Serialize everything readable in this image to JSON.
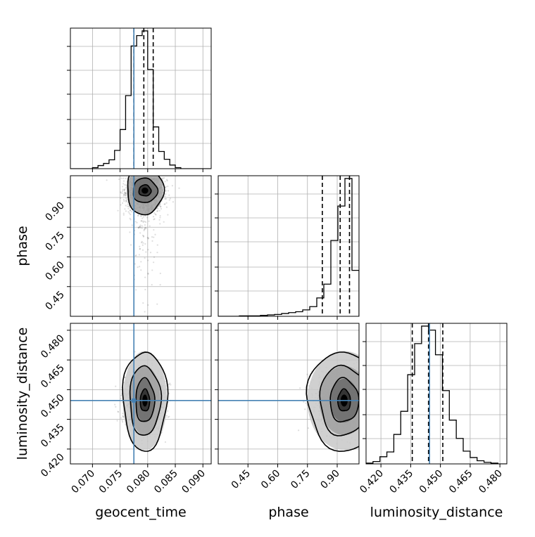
{
  "chart_data": {
    "type": "corner",
    "parameters": [
      "geocent_time",
      "phase",
      "luminosity_distance"
    ],
    "axis_labels": {
      "geocent_time": "geocent_time",
      "phase": "phase",
      "luminosity_distance": "luminosity_distance"
    },
    "ranges": {
      "geocent_time": [
        0.066,
        0.0915
      ],
      "phase": [
        0.3,
        1.01
      ],
      "luminosity_distance": [
        0.4125,
        0.4835
      ]
    },
    "ticks": {
      "geocent_time": [
        0.07,
        0.075,
        0.08,
        0.085,
        0.09
      ],
      "phase": [
        0.45,
        0.6,
        0.75,
        0.9
      ],
      "luminosity_distance": [
        0.42,
        0.435,
        0.45,
        0.465,
        0.48
      ]
    },
    "tick_labels": {
      "geocent_time": [
        "0.070",
        "0.075",
        "0.080",
        "0.085",
        "0.090"
      ],
      "phase": [
        "0.45",
        "0.60",
        "0.75",
        "0.90"
      ],
      "luminosity_distance": [
        "0.420",
        "0.435",
        "0.450",
        "0.465",
        "0.480"
      ]
    },
    "truths": {
      "geocent_time": 0.0775,
      "phase": null,
      "luminosity_distance": 0.4445
    },
    "truth_color": "#4682b4",
    "quantiles": {
      "geocent_time": [
        0.0775,
        0.0793,
        0.081
      ],
      "phase": [
        0.825,
        0.915,
        0.962
      ],
      "luminosity_distance": [
        0.4358,
        0.444,
        0.4512
      ]
    },
    "histograms": {
      "geocent_time": {
        "edges": [
          0.07,
          0.071,
          0.072,
          0.073,
          0.074,
          0.075,
          0.076,
          0.077,
          0.078,
          0.079,
          0.08,
          0.081,
          0.082,
          0.083,
          0.084,
          0.085,
          0.086,
          0.087
        ],
        "counts": [
          2,
          6,
          10,
          17,
          35,
          75,
          140,
          235,
          255,
          264,
          190,
          80,
          33,
          18,
          7,
          2,
          0
        ]
      },
      "phase": {
        "edges": [
          0.3,
          0.3355,
          0.371,
          0.4065,
          0.442,
          0.4775,
          0.513,
          0.5485,
          0.584,
          0.6195,
          0.655,
          0.6905,
          0.726,
          0.7615,
          0.797,
          0.8325,
          0.868,
          0.9035,
          0.939,
          0.9745,
          1.01
        ],
        "counts": [
          0,
          0,
          0,
          1,
          1,
          1,
          2,
          3,
          4,
          6,
          8,
          10,
          14,
          21,
          40,
          70,
          165,
          240,
          300,
          100
        ]
      },
      "luminosity_distance": {
        "edges": [
          0.4125,
          0.416,
          0.4195,
          0.423,
          0.4265,
          0.43,
          0.4335,
          0.437,
          0.4405,
          0.444,
          0.4475,
          0.451,
          0.4545,
          0.458,
          0.4615,
          0.465,
          0.4685,
          0.472,
          0.4755,
          0.479,
          0.4825
        ],
        "counts": [
          1,
          3,
          9,
          15,
          37,
          66,
          112,
          151,
          173,
          168,
          137,
          92,
          55,
          32,
          16,
          8,
          4,
          2,
          1,
          0
        ]
      }
    },
    "panels_2d": [
      {
        "x": "geocent_time",
        "y": "phase",
        "center": [
          0.0795,
          0.935
        ],
        "sigma": [
          0.00165,
          0.055
        ],
        "cut": 1.0,
        "tail": [
          0.08,
          0.28
        ],
        "contours_xy_radius": [
          [
            0.0011,
            0.028
          ],
          [
            0.0022,
            0.062
          ],
          [
            0.0033,
            0.12
          ]
        ],
        "n_points": 1600
      },
      {
        "x": "geocent_time",
        "y": "luminosity_distance",
        "center": [
          0.0795,
          0.4445
        ],
        "sigma": [
          0.00155,
          0.0068
        ],
        "n_points": 1700,
        "contours_xy_radius": [
          [
            0.00085,
            0.0055
          ],
          [
            0.0017,
            0.011
          ],
          [
            0.0028,
            0.0175
          ],
          [
            0.004,
            0.025
          ]
        ]
      },
      {
        "x": "phase",
        "y": "luminosity_distance",
        "center": [
          0.935,
          0.4445
        ],
        "sigma": [
          0.065,
          0.0068
        ],
        "cut": 1.0,
        "n_points": 1800,
        "contours_xy_radius": [
          [
            0.032,
            0.0055
          ],
          [
            0.072,
            0.011
          ],
          [
            0.125,
            0.0175
          ],
          [
            0.185,
            0.025
          ]
        ]
      }
    ],
    "grid": true,
    "legend": "none"
  }
}
